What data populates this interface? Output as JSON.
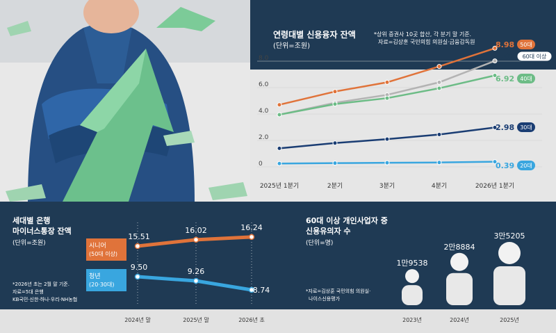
{
  "top_chart": {
    "title": "연령대별 신용융자 잔액",
    "unit": "(단위=조원)",
    "note_line1": "*상위 증권사 10곳 합산, 각 분기 말 기준.",
    "note_line2": "자료=김상훈 국민의힘 의원실·금융감독원"
  },
  "bottom_left": {
    "title_line1": "세대별 은행",
    "title_line2": "마이너스통장 잔액",
    "unit": "(단위=조원)",
    "note_line1": "*2026년 초는 2월 말 기준.",
    "note_line2": "자료=5대 은행",
    "note_line3": "KB국민·신한·하나·우리·NH농협"
  },
  "bottom_right": {
    "title_line1": "60대 이상 개인사업자 중",
    "title_line2": "신용유의자 수",
    "unit": "(단위=명)",
    "note_line1": "*자료=김상훈 국민의힘 의원실·",
    "note_line2": "나이스신용평가"
  },
  "chart_data": [
    {
      "type": "line",
      "categories": [
        "2025년 1분기",
        "2분기",
        "3분기",
        "4분기",
        "2026년 1분기"
      ],
      "ylim": [
        0,
        9
      ],
      "yticks": [
        "0",
        "2.0",
        "4.0",
        "6.0",
        "8.0"
      ],
      "series": [
        {
          "name": "50대",
          "values": [
            4.7,
            5.7,
            6.4,
            7.6,
            8.98
          ],
          "color": "#e0733a",
          "end_label": "8.98"
        },
        {
          "name": "60대 이상",
          "values": [
            3.95,
            4.85,
            5.45,
            6.4,
            8.02
          ],
          "color": "#b3b3b3",
          "end_label": "8.02"
        },
        {
          "name": "40대",
          "values": [
            3.95,
            4.75,
            5.2,
            5.95,
            6.92
          ],
          "color": "#6cbc86",
          "end_label": "6.92"
        },
        {
          "name": "30대",
          "values": [
            1.4,
            1.8,
            2.1,
            2.45,
            2.98
          ],
          "color": "#1a3d73",
          "end_label": "2.98"
        },
        {
          "name": "20대",
          "values": [
            0.25,
            0.28,
            0.31,
            0.33,
            0.39
          ],
          "color": "#39a6df",
          "end_label": "0.39"
        }
      ]
    },
    {
      "type": "line",
      "categories": [
        "2024년 말",
        "2025년 말",
        "2026년 초"
      ],
      "series": [
        {
          "name": "시니어 (50대 이상)",
          "label_line1": "시니어",
          "label_line2": "(50대 이상)",
          "values": [
            15.51,
            16.02,
            16.24
          ],
          "labels": [
            "15.51",
            "16.02",
            "16.24"
          ],
          "color": "#e0733a"
        },
        {
          "name": "청년 (20·30대)",
          "label_line1": "청년",
          "label_line2": "(20·30대)",
          "values": [
            9.5,
            9.26,
            8.74
          ],
          "labels": [
            "9.50",
            "9.26",
            "8.74"
          ],
          "color": "#39a6df"
        }
      ]
    },
    {
      "type": "bar",
      "categories": [
        "2023년",
        "2024년",
        "2025년"
      ],
      "values": [
        19538,
        28884,
        35205
      ],
      "labels": [
        "1만9538",
        "2만8884",
        "3만5205"
      ]
    }
  ]
}
